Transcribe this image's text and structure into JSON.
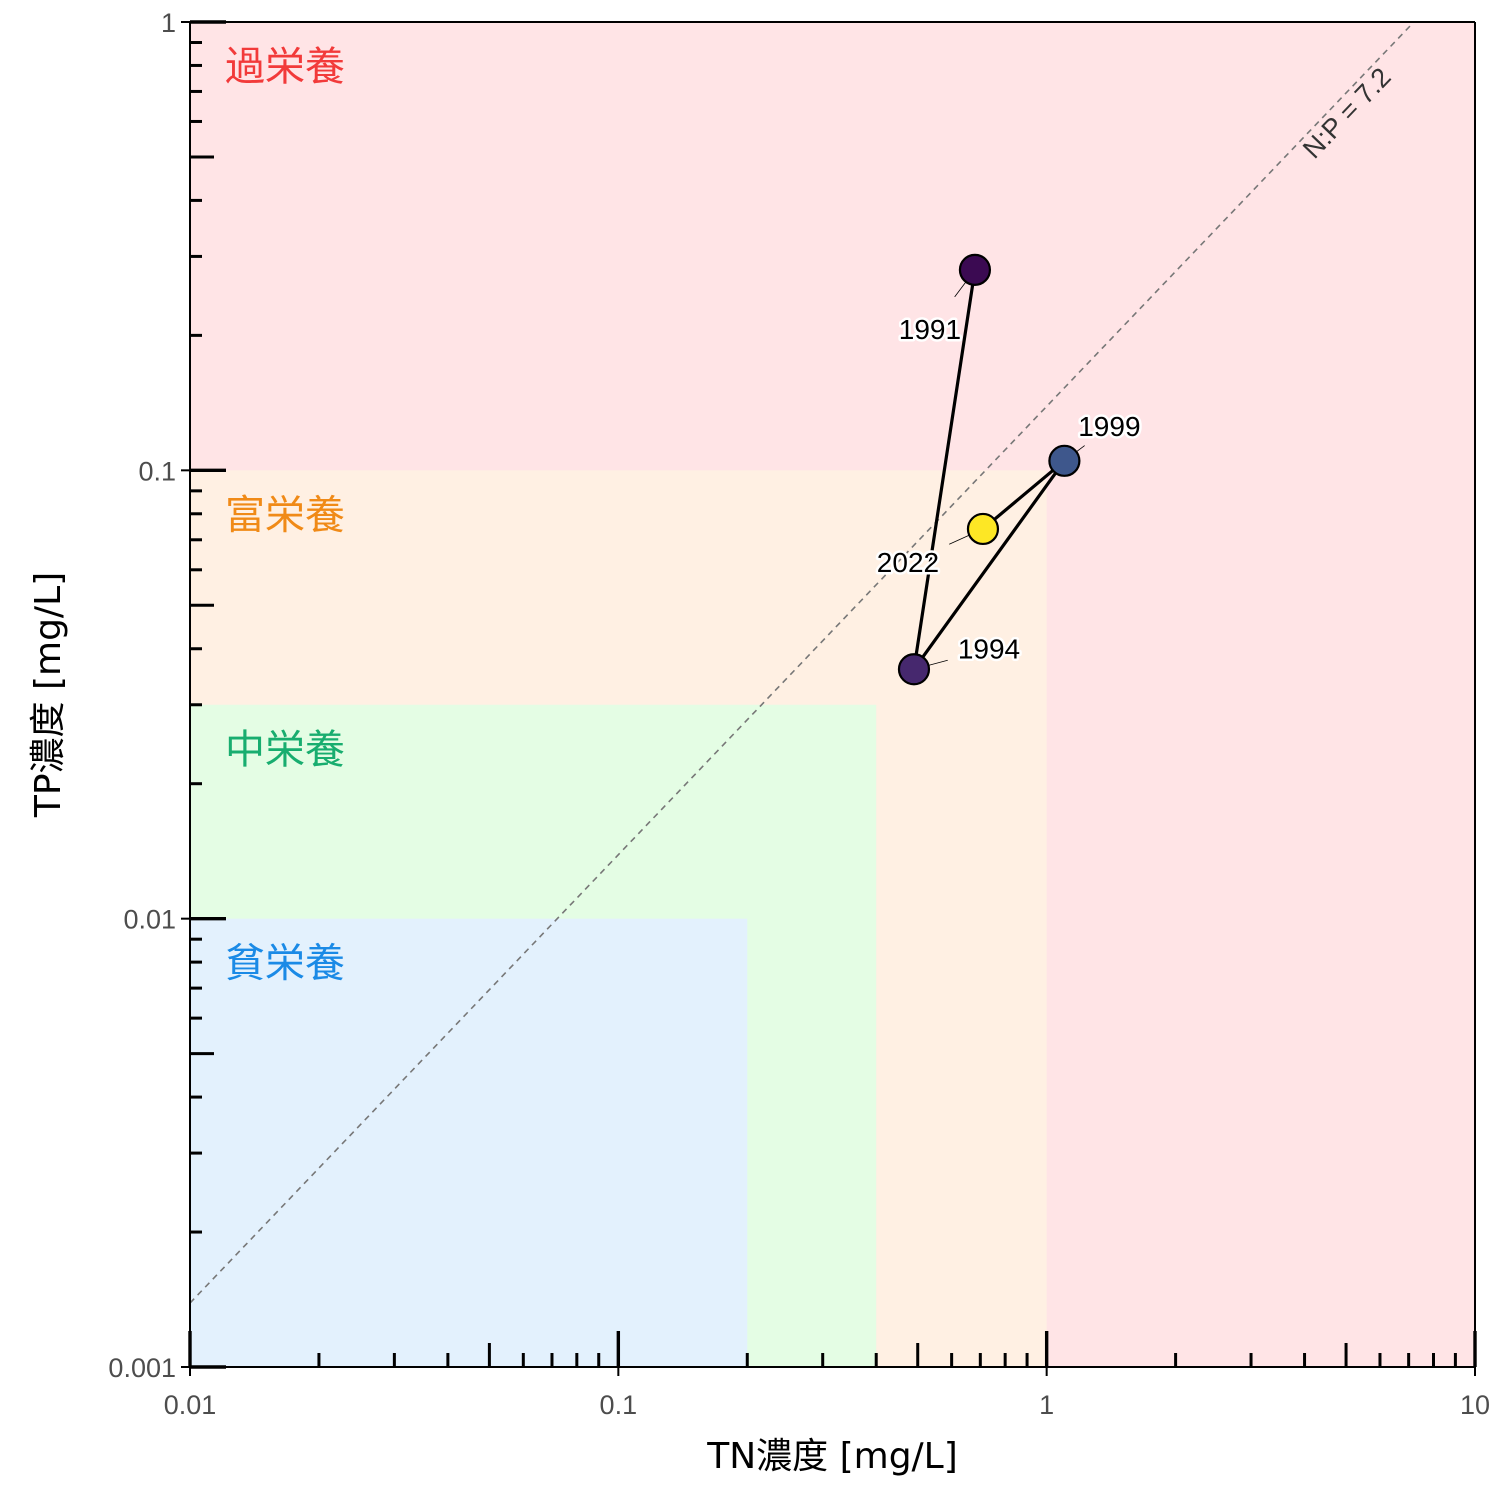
{
  "chart_data": {
    "type": "scatter",
    "xlabel": "TN濃度 [mg/L]",
    "ylabel": "TP濃度 [mg/L]",
    "x_scale": "log",
    "y_scale": "log",
    "xlim": [
      0.01,
      10
    ],
    "ylim": [
      0.001,
      1
    ],
    "x_ticks": [
      {
        "value": 0.01,
        "label": "0.01"
      },
      {
        "value": 0.1,
        "label": "0.1"
      },
      {
        "value": 1,
        "label": "1"
      },
      {
        "value": 10,
        "label": "10"
      }
    ],
    "y_ticks": [
      {
        "value": 0.001,
        "label": "0.001"
      },
      {
        "value": 0.01,
        "label": "0.01"
      },
      {
        "value": 0.1,
        "label": "0.1"
      },
      {
        "value": 1,
        "label": "1"
      }
    ],
    "grid": false,
    "zones": [
      {
        "name": "過栄養",
        "tn_max": 10,
        "tp_max": 1,
        "fill": "#ffe4e6",
        "text_color": "#f23a3a"
      },
      {
        "name": "富栄養",
        "tn_max": 1,
        "tp_max": 0.1,
        "fill": "#fff0e3",
        "text_color": "#f08a17"
      },
      {
        "name": "中栄養",
        "tn_max": 0.4,
        "tp_max": 0.03,
        "fill": "#e4fde4",
        "text_color": "#18ad6f"
      },
      {
        "name": "貧栄養",
        "tn_max": 0.2,
        "tp_max": 0.01,
        "fill": "#e3f1fd",
        "text_color": "#1a8ae6"
      }
    ],
    "ratio_line": {
      "label": "N:P = 7.2",
      "ratio": 7.2,
      "color": "#777777"
    },
    "points": [
      {
        "label": "1991",
        "tn": 0.68,
        "tp": 0.28,
        "color": "#3b0a52"
      },
      {
        "label": "1994",
        "tn": 0.49,
        "tp": 0.036,
        "color": "#46286e"
      },
      {
        "label": "1999",
        "tn": 1.1,
        "tp": 0.105,
        "color": "#3e578c"
      },
      {
        "label": "2022",
        "tn": 0.71,
        "tp": 0.074,
        "color": "#fde725"
      }
    ],
    "line_order": [
      "1991",
      "1994",
      "1999",
      "2022"
    ]
  }
}
